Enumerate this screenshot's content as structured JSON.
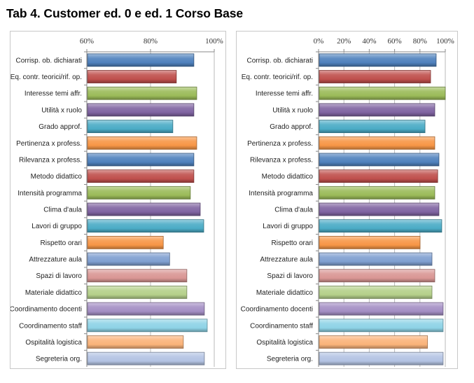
{
  "title": "Tab 4. Customer ed. 0 e ed. 1 Corso Base",
  "palette": [
    "#4f81bd",
    "#c0504d",
    "#9bbb59",
    "#8064a2",
    "#4bacc6",
    "#f79646",
    "#4f81bd",
    "#c0504d",
    "#9bbb59",
    "#8064a2",
    "#4bacc6",
    "#f79646",
    "#7f9fd0",
    "#d99694",
    "#b5d08a",
    "#a48fc4",
    "#8ed3e6",
    "#fab37a",
    "#b3c3e3"
  ],
  "chart_data": [
    {
      "type": "bar",
      "orientation": "horizontal",
      "title": "",
      "xlabel": "",
      "ylabel": "",
      "xlim": [
        0.6,
        1.0
      ],
      "ticks": [
        0.6,
        0.8,
        1.0
      ],
      "tick_labels": [
        "60%",
        "80%",
        "100%"
      ],
      "tick_position": "top",
      "grid": true,
      "categories": [
        "Corrisp. ob. dichiarati",
        "Eq. contr. teorici/rif. op.",
        "Interesse temi affr.",
        "Utilità x ruolo",
        "Grado approf.",
        "Pertinenza x profess.",
        "Rilevanza x profess.",
        "Metodo didattico",
        "Intensità programma",
        "Clima d'aula",
        "Lavori di gruppo",
        "Rispetto orari",
        "Attrezzature aula",
        "Spazi di lavoro",
        "Materiale didattico",
        "Coordinamento docenti",
        "Coordinamento staff",
        "Ospitalità logistica",
        "Segreteria org."
      ],
      "values": [
        0.936,
        0.881,
        0.945,
        0.936,
        0.87,
        0.945,
        0.936,
        0.936,
        0.925,
        0.956,
        0.967,
        0.84,
        0.86,
        0.914,
        0.914,
        0.969,
        0.978,
        0.903,
        0.969
      ]
    },
    {
      "type": "bar",
      "orientation": "horizontal",
      "title": "",
      "xlabel": "",
      "ylabel": "",
      "xlim": [
        0.0,
        1.0
      ],
      "ticks": [
        0.0,
        0.2,
        0.4,
        0.6,
        0.8,
        1.0
      ],
      "tick_labels": [
        "0%",
        "20%",
        "40%",
        "60%",
        "80%",
        "100%"
      ],
      "tick_position": "top",
      "grid": true,
      "categories": [
        "Corrisp. ob. dichiarati",
        "Eq. contr. teorici/rif. op.",
        "Interesse temi affr.",
        "Utilità x ruolo",
        "Grado approf.",
        "Pertinenza x profess.",
        "Rilevanza x profess.",
        "Metodo didattico",
        "Intensità programma",
        "Clima d'aula",
        "Lavori di gruppo",
        "Rispetto orari",
        "Attrezzature aula",
        "Spazi di lavoro",
        "Materiale didattico",
        "Coordinamento docenti",
        "Coordinamento staff",
        "Ospitalità logistica",
        "Segreteria org."
      ],
      "values": [
        0.928,
        0.884,
        1.0,
        0.917,
        0.84,
        0.917,
        0.95,
        0.94,
        0.917,
        0.95,
        0.972,
        0.801,
        0.895,
        0.917,
        0.895,
        0.983,
        0.983,
        0.86,
        0.983
      ]
    }
  ]
}
